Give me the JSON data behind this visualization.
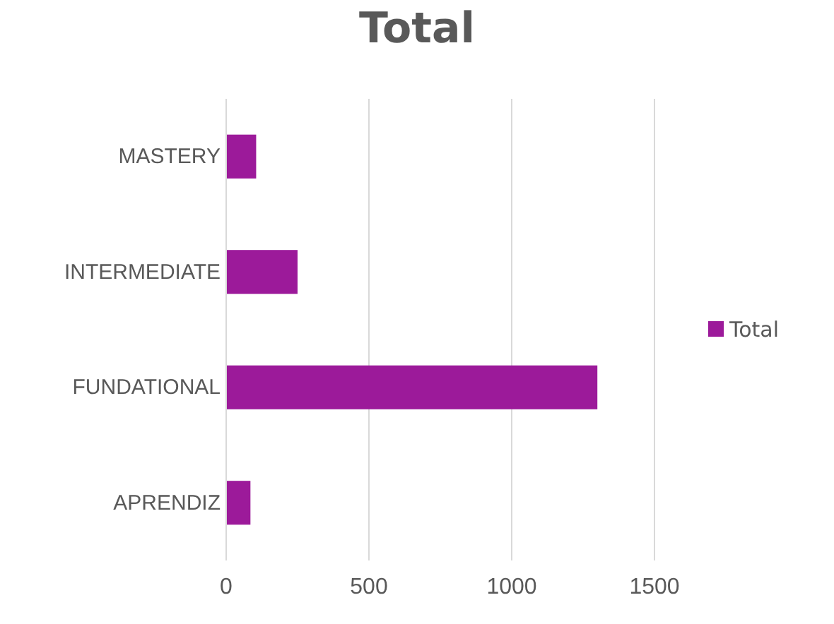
{
  "chart_data": {
    "type": "bar",
    "title": "Total",
    "orientation": "horizontal",
    "categories": [
      "MASTERY",
      "INTERMEDIATE",
      "FUNDATIONAL",
      "APRENDIZ"
    ],
    "series": [
      {
        "name": "Total",
        "color": "#9c1a9a",
        "values": [
          105,
          250,
          1300,
          85
        ]
      }
    ],
    "xlim": [
      0,
      1500
    ],
    "xticks": [
      0,
      500,
      1000,
      1500
    ],
    "grid": "x",
    "legend": "right"
  }
}
